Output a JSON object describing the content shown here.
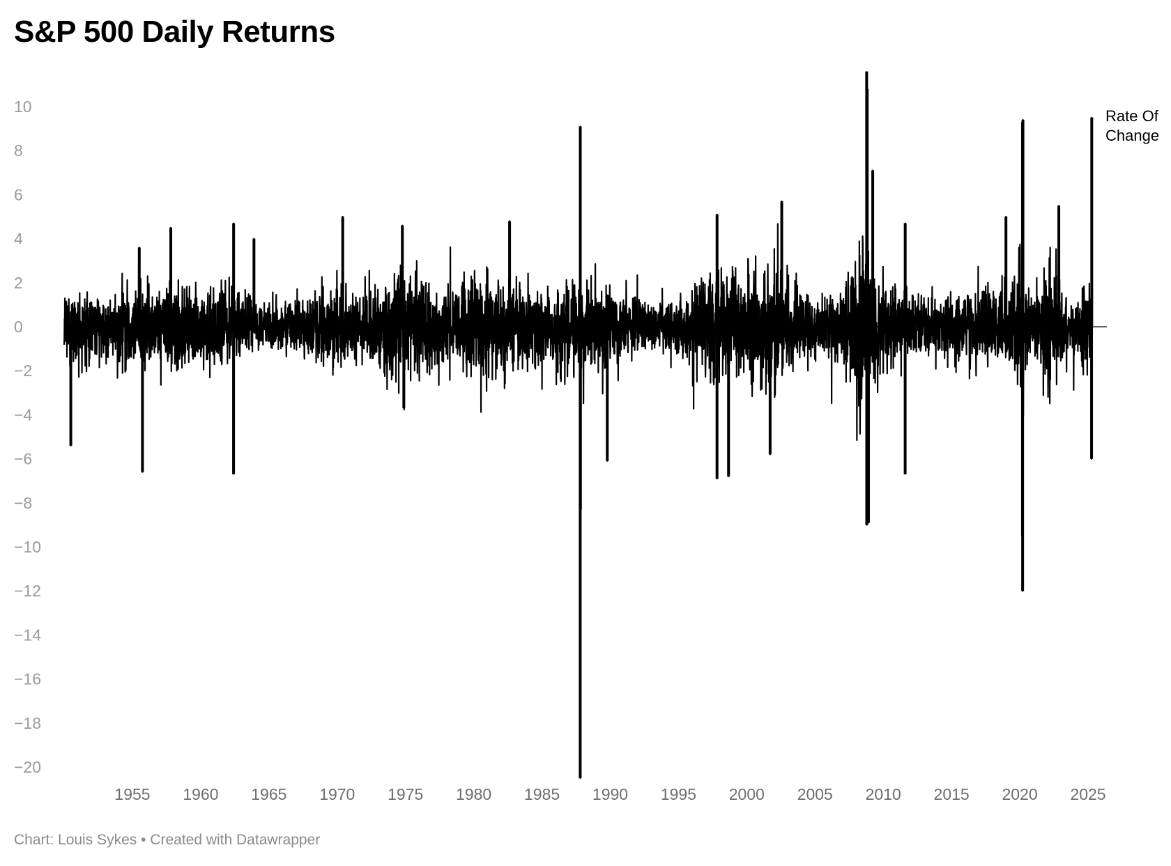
{
  "title": "S&P 500 Daily Returns",
  "footer": {
    "chart_credit": "Chart: Louis Sykes",
    "separator": "•",
    "tool_credit": "Created with Datawrapper"
  },
  "colors": {
    "series": "#000000",
    "axis_text": "#9a9a9a",
    "baseline": "#000000",
    "footer_text": "#8a8a8a"
  },
  "chart_data": {
    "type": "line",
    "title": "S&P 500 Daily Returns",
    "xlabel": "",
    "ylabel": "",
    "grid": false,
    "legend": "inline-right",
    "xlim": [
      1950,
      2025.5
    ],
    "ylim": [
      -20.5,
      11.8
    ],
    "y_ticks": [
      10,
      8,
      6,
      4,
      2,
      0,
      -2,
      -4,
      -6,
      -8,
      -10,
      -12,
      -14,
      -16,
      -18,
      -20
    ],
    "y_tick_labels": [
      "10",
      "8",
      "6",
      "4",
      "2",
      "0",
      "−2",
      "−4",
      "−6",
      "−8",
      "−10",
      "−12",
      "−14",
      "−16",
      "−18",
      "−20"
    ],
    "x_ticks": [
      1955,
      1960,
      1965,
      1970,
      1975,
      1980,
      1985,
      1990,
      1995,
      2000,
      2005,
      2010,
      2015,
      2020,
      2025
    ],
    "x_tick_labels": [
      "1955",
      "1960",
      "1965",
      "1970",
      "1975",
      "1980",
      "1985",
      "1990",
      "1995",
      "2000",
      "2005",
      "2010",
      "2015",
      "2020",
      "2025"
    ],
    "series": [
      {
        "name": "Rate Of Change",
        "label_lines": [
          "Rate Of",
          "Change"
        ],
        "volatility_envelope": {
          "years": [
            1950,
            1953,
            1955,
            1957,
            1960,
            1962,
            1965,
            1968,
            1970,
            1972,
            1974,
            1975,
            1978,
            1980,
            1982,
            1985,
            1987,
            1988,
            1990,
            1993,
            1995,
            1997,
            1999,
            2000,
            2002,
            2003,
            2005,
            2007,
            2008,
            2009,
            2010,
            2012,
            2014,
            2016,
            2018,
            2019,
            2020,
            2021,
            2022,
            2023,
            2024,
            2025.3
          ],
          "typical_abs_return": [
            0.8,
            0.7,
            0.95,
            0.85,
            0.8,
            0.9,
            0.5,
            0.7,
            0.95,
            0.6,
            1.35,
            1.2,
            0.8,
            1.05,
            1.05,
            0.8,
            1.3,
            1.05,
            0.9,
            0.5,
            0.6,
            1.1,
            1.2,
            1.45,
            1.45,
            1.1,
            0.6,
            0.9,
            2.2,
            1.6,
            1.05,
            0.8,
            0.65,
            0.8,
            0.9,
            0.8,
            1.6,
            0.85,
            1.5,
            0.9,
            0.8,
            1.1
          ]
        },
        "notable_points": [
          {
            "date": "1950-06-26",
            "value": -5.4
          },
          {
            "date": "1955-09-26",
            "value": -6.6
          },
          {
            "date": "1955-07-01",
            "value": 3.6
          },
          {
            "date": "1957-10-23",
            "value": 4.5
          },
          {
            "date": "1962-05-28",
            "value": -6.7
          },
          {
            "date": "1962-05-29",
            "value": 4.7
          },
          {
            "date": "1963-11-26",
            "value": 4.0
          },
          {
            "date": "1970-05-27",
            "value": 5.0
          },
          {
            "date": "1974-10-09",
            "value": 4.6
          },
          {
            "date": "1974-11-18",
            "value": -3.7
          },
          {
            "date": "1982-08-17",
            "value": 4.8
          },
          {
            "date": "1987-10-19",
            "value": -20.5
          },
          {
            "date": "1987-10-21",
            "value": 9.1
          },
          {
            "date": "1987-10-26",
            "value": -8.3
          },
          {
            "date": "1989-10-13",
            "value": -6.1
          },
          {
            "date": "1997-10-27",
            "value": -6.9
          },
          {
            "date": "1997-10-28",
            "value": 5.1
          },
          {
            "date": "1998-08-31",
            "value": -6.8
          },
          {
            "date": "2001-09-17",
            "value": -5.8
          },
          {
            "date": "2002-07-24",
            "value": 5.7
          },
          {
            "date": "2008-10-13",
            "value": 11.6
          },
          {
            "date": "2008-10-28",
            "value": 10.8
          },
          {
            "date": "2008-10-15",
            "value": -9.0
          },
          {
            "date": "2008-12-01",
            "value": -8.9
          },
          {
            "date": "2009-03-23",
            "value": 7.1
          },
          {
            "date": "2011-08-08",
            "value": -6.7
          },
          {
            "date": "2011-08-09",
            "value": 4.7
          },
          {
            "date": "2018-12-26",
            "value": 5.0
          },
          {
            "date": "2020-03-16",
            "value": -12.0
          },
          {
            "date": "2020-03-24",
            "value": 9.4
          },
          {
            "date": "2020-03-13",
            "value": 9.3
          },
          {
            "date": "2020-03-12",
            "value": -9.5
          },
          {
            "date": "2022-11-10",
            "value": 5.5
          },
          {
            "date": "2025-04-04",
            "value": -6.0
          },
          {
            "date": "2025-04-09",
            "value": 9.5
          }
        ]
      }
    ]
  }
}
